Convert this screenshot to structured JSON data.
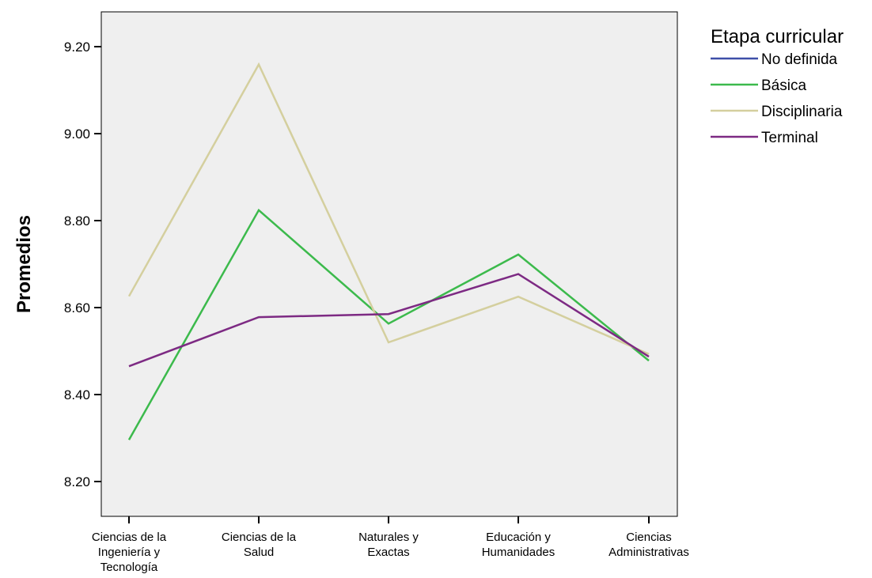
{
  "chart_data": {
    "type": "line",
    "ylabel": "Promedios",
    "xlabel": "",
    "categories": [
      [
        "Ciencias de la",
        "Ingeniería y",
        "Tecnología"
      ],
      [
        "Ciencias de la",
        "Salud"
      ],
      [
        "Naturales y",
        "Exactas"
      ],
      [
        "Educación y",
        "Humanidades"
      ],
      [
        "Ciencias",
        "Administrativas"
      ]
    ],
    "ylim": [
      8.12,
      9.28
    ],
    "yticks": [
      8.2,
      8.4,
      8.6,
      8.8,
      9.0,
      9.2
    ],
    "ytick_labels": [
      "8.20",
      "8.40",
      "8.60",
      "8.80",
      "9.00",
      "9.20"
    ],
    "grid": false,
    "plot_background": "#efefef",
    "legend": {
      "title": "Etapa curricular",
      "position": "top-right"
    },
    "series": [
      {
        "name": "No definida",
        "color": "#3e4fa8",
        "values": [
          null,
          null,
          null,
          null,
          null
        ]
      },
      {
        "name": "Básica",
        "color": "#3cba4c",
        "values": [
          8.296,
          8.824,
          8.563,
          8.722,
          8.478
        ]
      },
      {
        "name": "Disciplinaria",
        "color": "#d4cf9e",
        "values": [
          8.626,
          9.159,
          8.52,
          8.625,
          8.493
        ]
      },
      {
        "name": "Terminal",
        "color": "#7d2a83",
        "values": [
          8.465,
          8.578,
          8.585,
          8.677,
          8.487
        ]
      }
    ]
  }
}
